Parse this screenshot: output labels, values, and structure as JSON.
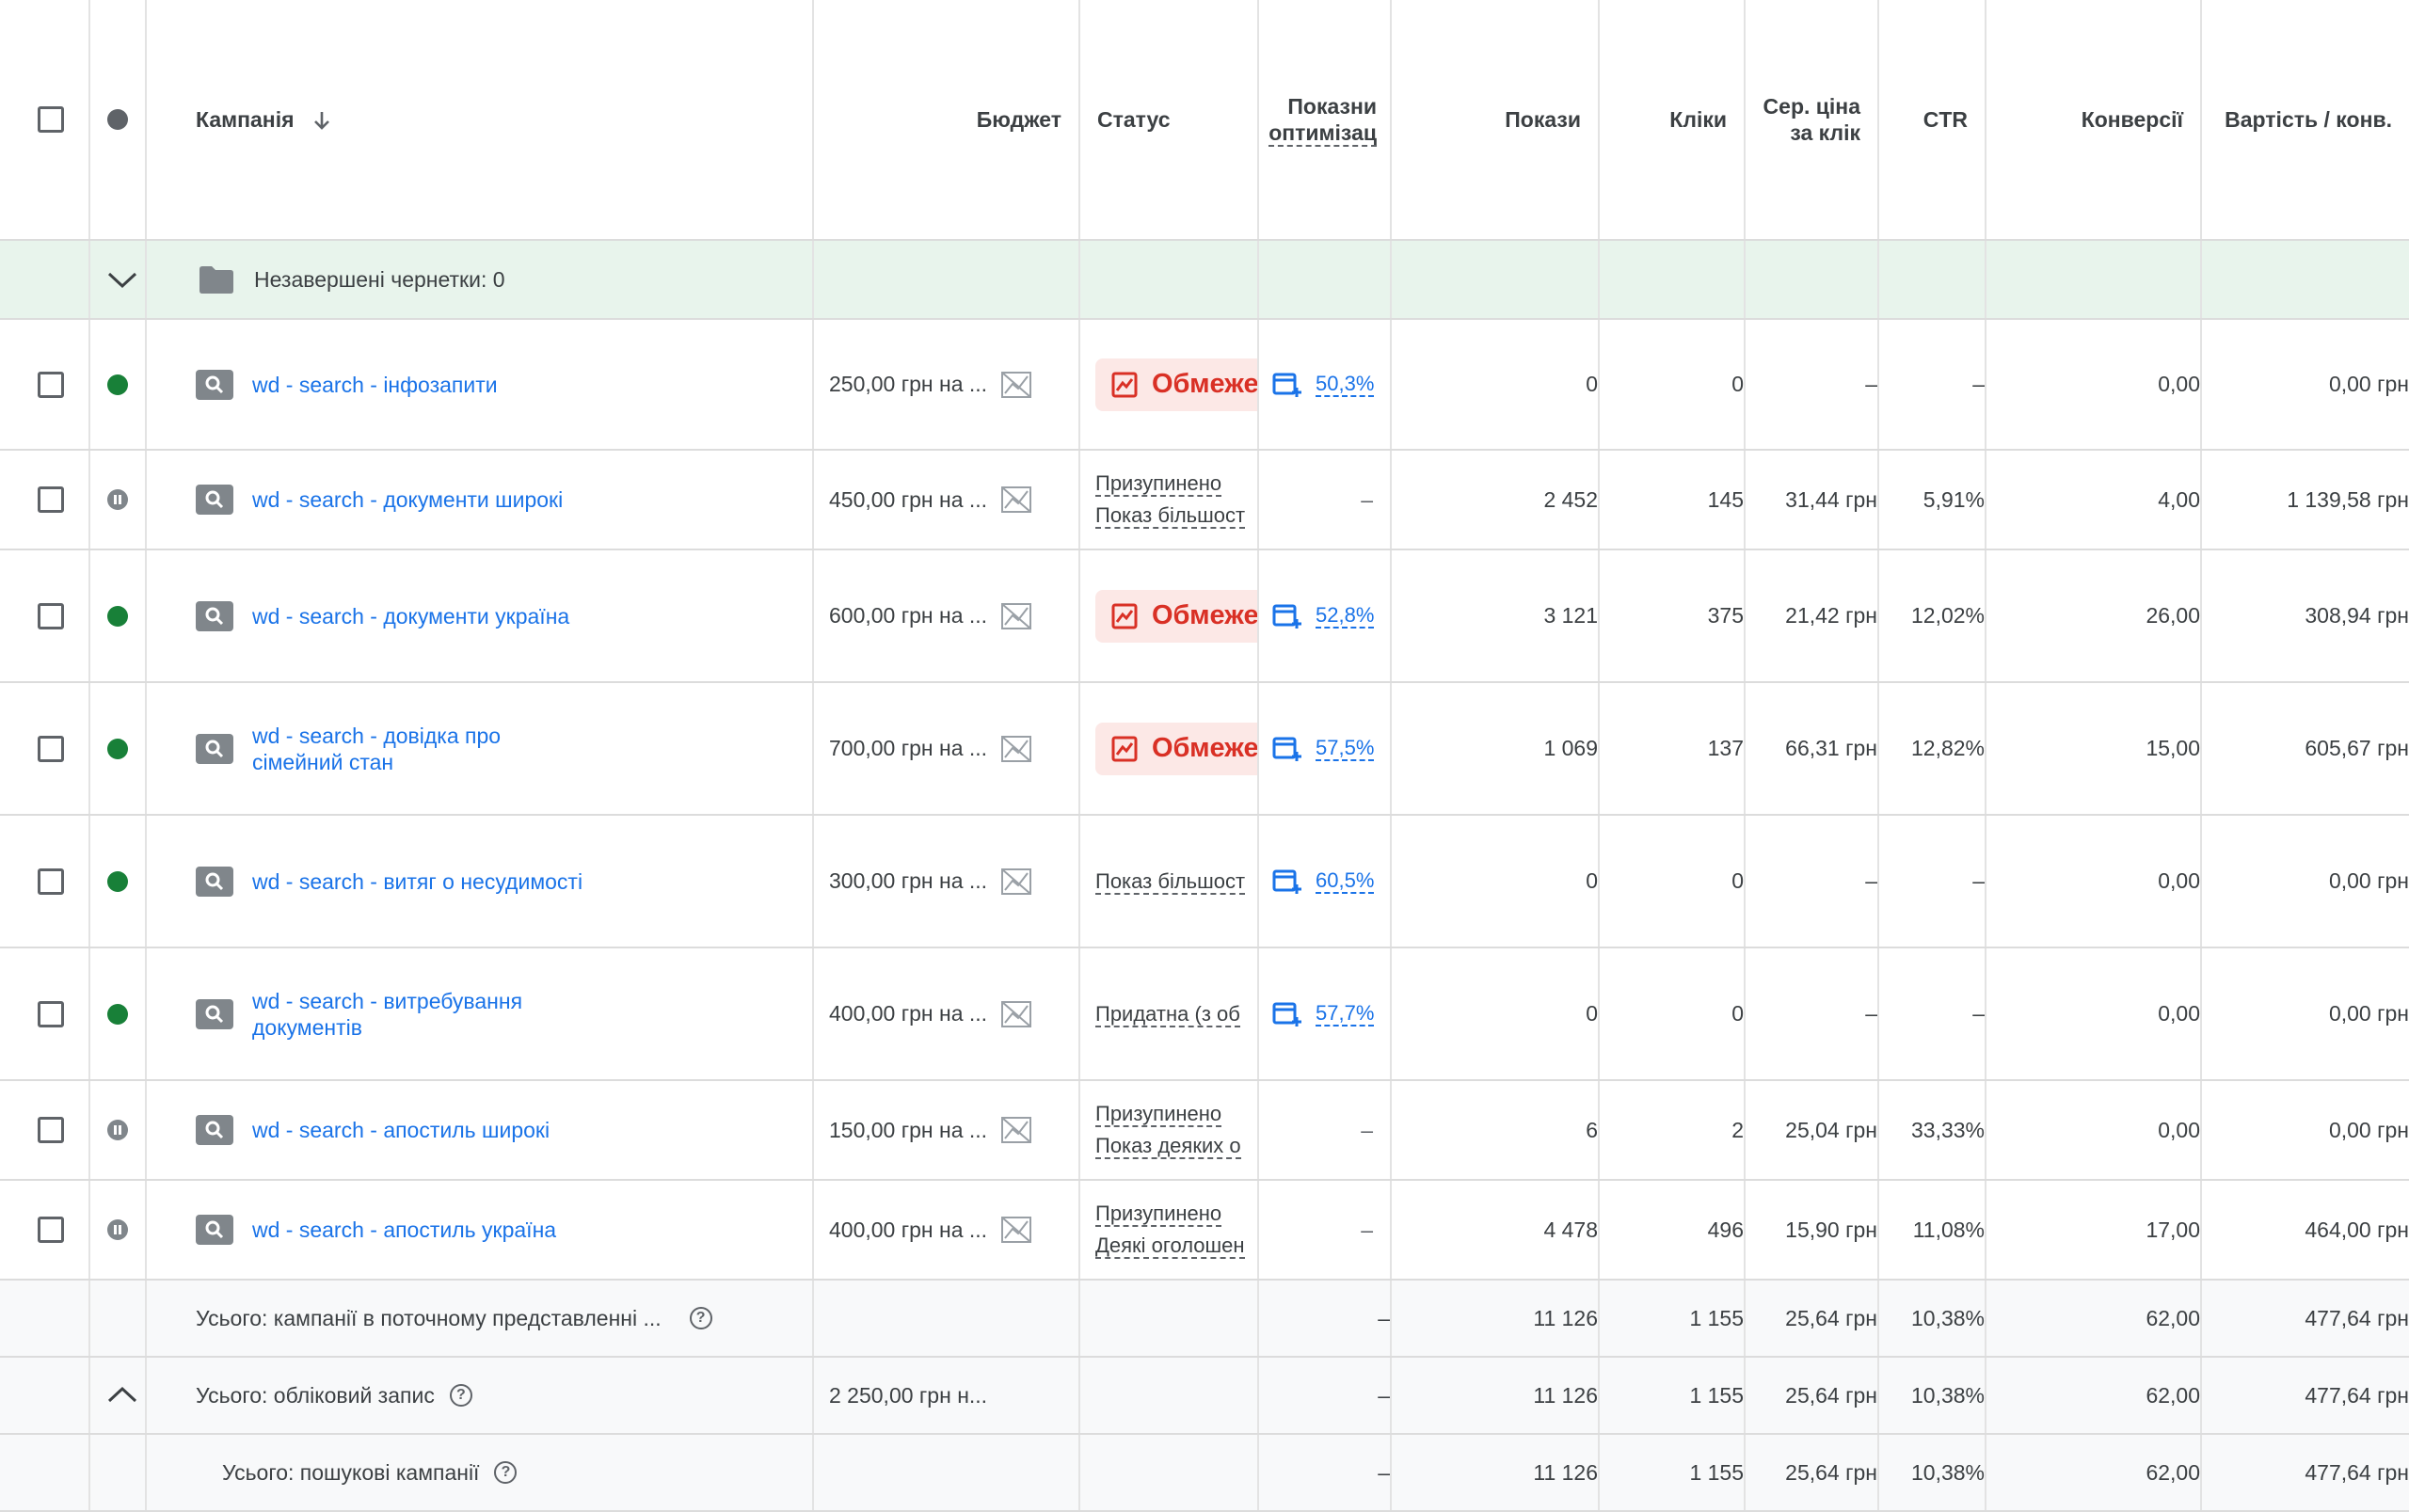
{
  "header": {
    "campaign": "Кампанія",
    "budget": "Бюджет",
    "status": "Статус",
    "optimization_l1": "Показни",
    "optimization_l2": "оптимізац",
    "impressions": "Покази",
    "clicks": "Кліки",
    "avg_cpc_l1": "Сер. ціна",
    "avg_cpc_l2": "за клік",
    "ctr": "CTR",
    "conversions": "Конверсії",
    "cost_per_conv": "Вартість / конв."
  },
  "drafts": {
    "label": "Незавершені чернетки: 0"
  },
  "rows": [
    {
      "name_l1": "wd - search - інфозапити",
      "name_l2": "",
      "budget": "250,00 грн на ...",
      "status_badge": "Обмеже",
      "status_l1": "",
      "status_l2": "",
      "opt": "50,3%",
      "impressions": "0",
      "clicks": "0",
      "avg_cpc": "–",
      "ctr": "–",
      "conversions": "0,00",
      "cost_per_conv": "0,00 грн"
    },
    {
      "name_l1": "wd - search - документи широкі",
      "name_l2": "",
      "budget": "450,00 грн на ...",
      "status_badge": "",
      "status_l1": "Призупинено",
      "status_l2": "Показ більшост",
      "opt": "–",
      "impressions": "2 452",
      "clicks": "145",
      "avg_cpc": "31,44 грн",
      "ctr": "5,91%",
      "conversions": "4,00",
      "cost_per_conv": "1 139,58 грн"
    },
    {
      "name_l1": "wd - search - документи україна",
      "name_l2": "",
      "budget": "600,00 грн на ...",
      "status_badge": "Обмеже",
      "status_l1": "",
      "status_l2": "",
      "opt": "52,8%",
      "impressions": "3 121",
      "clicks": "375",
      "avg_cpc": "21,42 грн",
      "ctr": "12,02%",
      "conversions": "26,00",
      "cost_per_conv": "308,94 грн"
    },
    {
      "name_l1": "wd - search - довідка про",
      "name_l2": "сімейний стан",
      "budget": "700,00 грн на ...",
      "status_badge": "Обмеже",
      "status_l1": "",
      "status_l2": "",
      "opt": "57,5%",
      "impressions": "1 069",
      "clicks": "137",
      "avg_cpc": "66,31 грн",
      "ctr": "12,82%",
      "conversions": "15,00",
      "cost_per_conv": "605,67 грн"
    },
    {
      "name_l1": "wd - search - витяг о несудимості",
      "name_l2": "",
      "budget": "300,00 грн на ...",
      "status_badge": "",
      "status_l1": "Показ більшост",
      "status_l2": "",
      "opt": "60,5%",
      "impressions": "0",
      "clicks": "0",
      "avg_cpc": "–",
      "ctr": "–",
      "conversions": "0,00",
      "cost_per_conv": "0,00 грн"
    },
    {
      "name_l1": "wd - search - витребування",
      "name_l2": "документів",
      "budget": "400,00 грн на ...",
      "status_badge": "",
      "status_l1": "Придатна (з об",
      "status_l2": "",
      "opt": "57,7%",
      "impressions": "0",
      "clicks": "0",
      "avg_cpc": "–",
      "ctr": "–",
      "conversions": "0,00",
      "cost_per_conv": "0,00 грн"
    },
    {
      "name_l1": "wd - search - апостиль широкі",
      "name_l2": "",
      "budget": "150,00 грн на ...",
      "status_badge": "",
      "status_l1": "Призупинено",
      "status_l2": "Показ деяких о",
      "opt": "–",
      "impressions": "6",
      "clicks": "2",
      "avg_cpc": "25,04 грн",
      "ctr": "33,33%",
      "conversions": "0,00",
      "cost_per_conv": "0,00 грн"
    },
    {
      "name_l1": "wd - search - апостиль україна",
      "name_l2": "",
      "budget": "400,00 грн на ...",
      "status_badge": "",
      "status_l1": "Призупинено",
      "status_l2": "Деякі оголошен",
      "opt": "–",
      "impressions": "4 478",
      "clicks": "496",
      "avg_cpc": "15,90 грн",
      "ctr": "11,08%",
      "conversions": "17,00",
      "cost_per_conv": "464,00 грн"
    }
  ],
  "totals": [
    {
      "label": "Усього: кампанії в поточному представленні ...",
      "budget": "",
      "opt": "–",
      "impressions": "11 126",
      "clicks": "1 155",
      "avg_cpc": "25,64 грн",
      "ctr": "10,38%",
      "conversions": "62,00",
      "cost_per_conv": "477,64 грн"
    },
    {
      "label": "Усього: обліковий запис",
      "budget": "2 250,00 грн н...",
      "opt": "–",
      "impressions": "11 126",
      "clicks": "1 155",
      "avg_cpc": "25,64 грн",
      "ctr": "10,38%",
      "conversions": "62,00",
      "cost_per_conv": "477,64 грн"
    },
    {
      "label": "Усього: пошукові кампанії",
      "budget": "",
      "opt": "–",
      "impressions": "11 126",
      "clicks": "1 155",
      "avg_cpc": "25,64 грн",
      "ctr": "10,38%",
      "conversions": "62,00",
      "cost_per_conv": "477,64 грн"
    }
  ],
  "colors": {
    "link": "#1a73e8",
    "enabled": "#188038",
    "limited": "#d93025",
    "limited_bg": "#fce8e6",
    "drafts_bg": "#e8f4ec"
  },
  "icons": {
    "status_header": "status-dot-icon",
    "sort": "arrow-down-icon",
    "folder": "folder-icon",
    "campaign_type": "search-campaign-icon",
    "budget": "budget-chart-icon",
    "limited": "trend-chart-icon",
    "optimization": "recommendation-icon",
    "help": "help-circle-icon"
  }
}
